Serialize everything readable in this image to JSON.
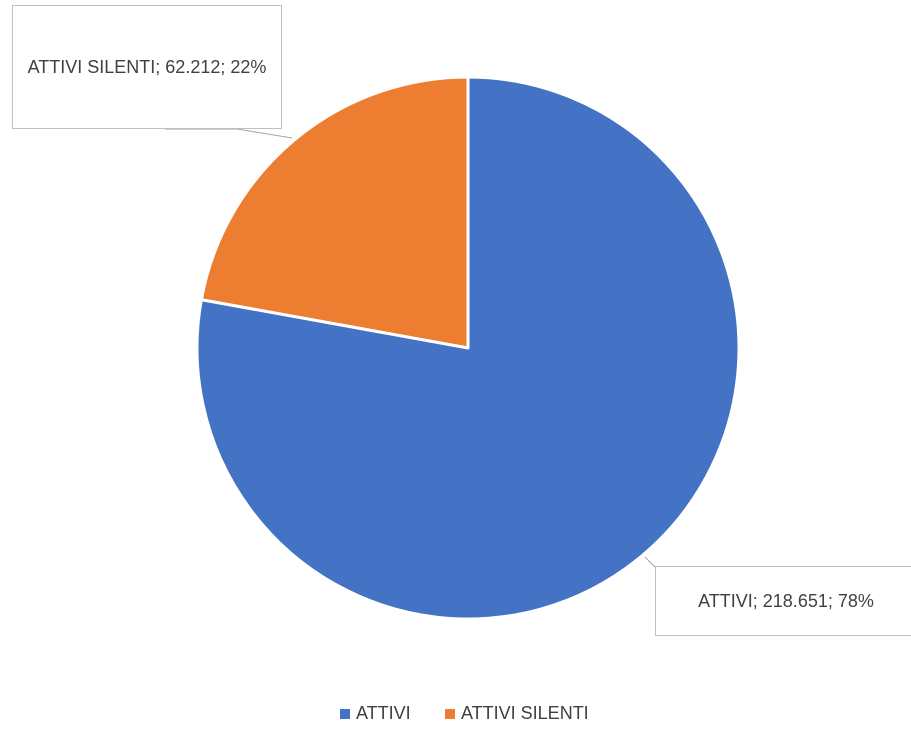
{
  "chart_data": {
    "type": "pie",
    "categories": [
      "ATTIVI",
      "ATTIVI SILENTI"
    ],
    "values": [
      218651,
      62212
    ],
    "value_labels": [
      "ATTIVI; 218.651; 78%",
      "ATTIVI SILENTI; 62.212; 22%"
    ],
    "colors": [
      "#4472c4",
      "#ed7d31"
    ],
    "legend": "bottom"
  }
}
